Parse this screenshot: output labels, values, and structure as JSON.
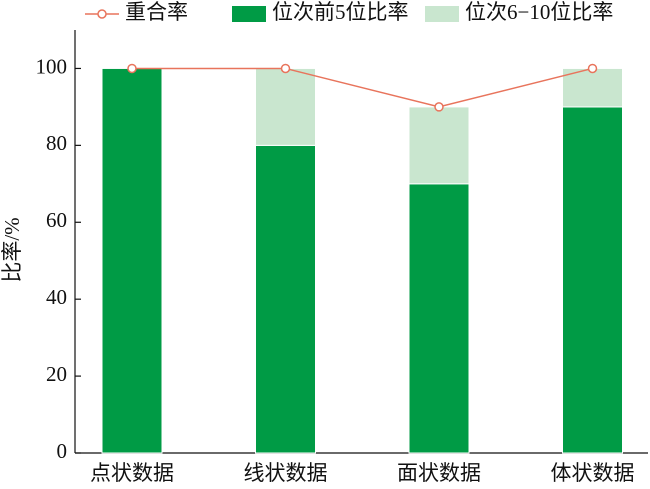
{
  "chart_data": {
    "type": "bar",
    "stacked": true,
    "categories": [
      "点状数据",
      "线状数据",
      "面状数据",
      "体状数据"
    ],
    "y_label": "比率/%",
    "series": [
      {
        "name": "重合率",
        "type": "line",
        "color": "#e8745c",
        "values": [
          100,
          100,
          90,
          100
        ]
      },
      {
        "name": "位次前5位比率",
        "type": "bar",
        "color": "#009b45",
        "values": [
          100,
          80,
          70,
          90
        ]
      },
      {
        "name": "位次6−10位比率",
        "type": "bar",
        "color": "#c9e6cf",
        "values": [
          0,
          20,
          20,
          10
        ]
      }
    ],
    "ylim": [
      0,
      110
    ],
    "yticks": [
      0,
      20,
      40,
      60,
      80,
      100
    ],
    "legend": "top"
  }
}
